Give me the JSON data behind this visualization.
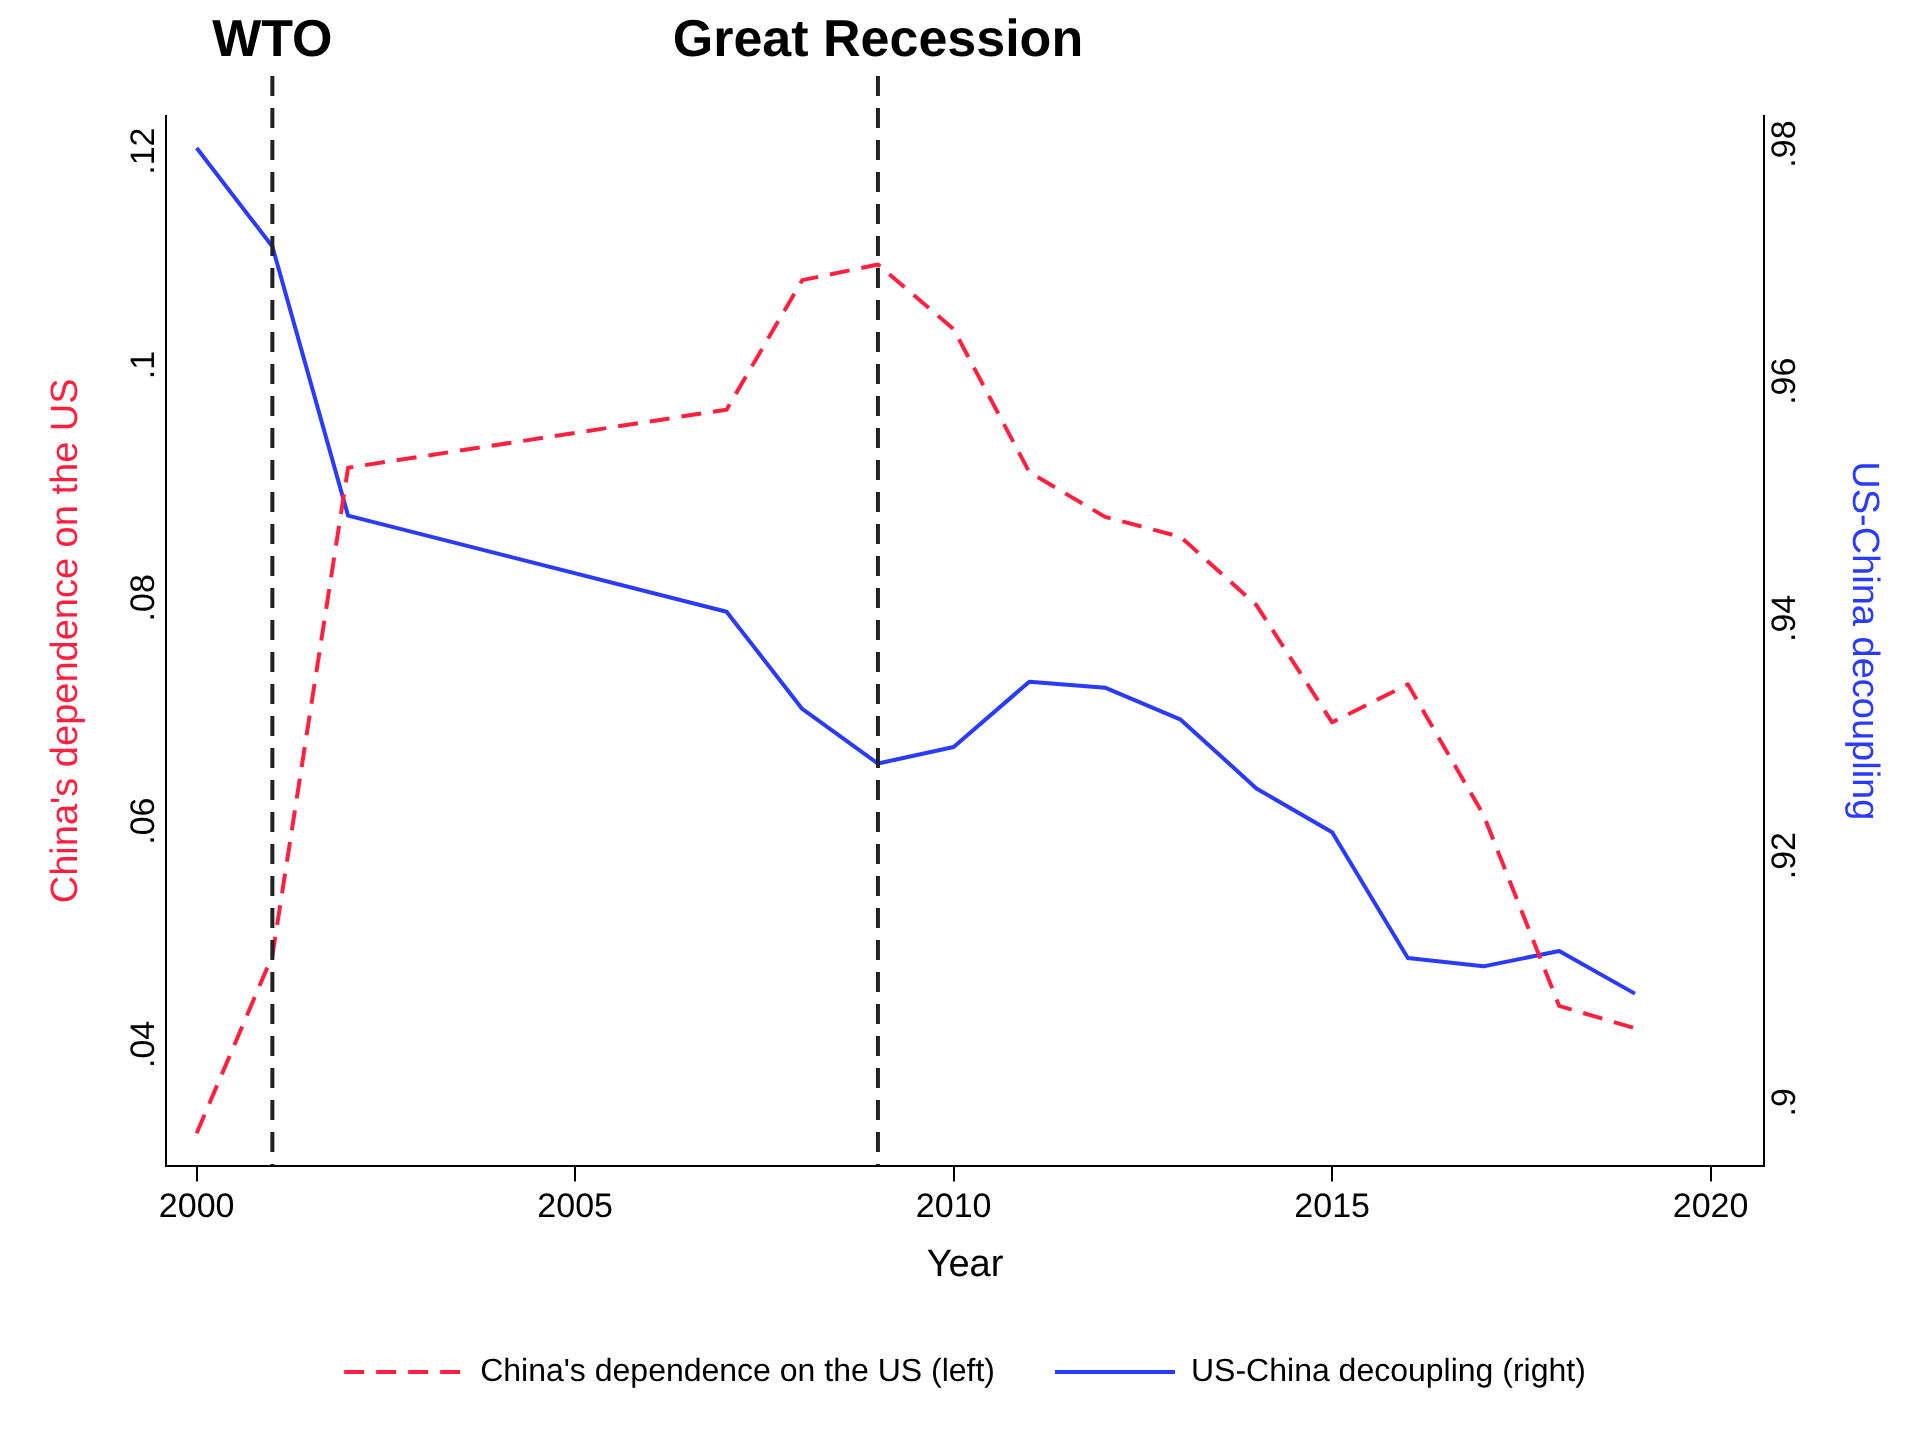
{
  "chart_data": {
    "type": "line",
    "xlabel": "Year",
    "ylabel": "China's dependence on the US",
    "y2label": "US-China decoupling",
    "x": [
      2000,
      2001,
      2002,
      2007,
      2008,
      2009,
      2010,
      2011,
      2012,
      2013,
      2014,
      2015,
      2016,
      2017,
      2018,
      2019
    ],
    "series": [
      {
        "name": "China's dependence on the US (left)",
        "color": "#ff2040",
        "line_style": "dashed",
        "values": [
          0.0319,
          0.0478,
          0.0915,
          0.0967,
          0.1083,
          0.1097,
          0.1039,
          0.0911,
          0.0871,
          0.0853,
          0.0792,
          0.0687,
          0.0721,
          0.0604,
          0.0433,
          0.0413
        ]
      },
      {
        "name": "US-China decoupling (right)",
        "color": "#2a3bff",
        "line_style": "solid",
        "axis": "y2",
        "values": [
          0.9798,
          0.9715,
          0.9488,
          0.9407,
          0.9325,
          0.9279,
          0.9293,
          0.9348,
          0.9343,
          0.9316,
          0.9258,
          0.9221,
          0.9115,
          0.9108,
          0.9121,
          0.9085
        ]
      }
    ],
    "xlim": [
      1999.6,
      2020.7
    ],
    "xticks": [
      2000,
      2005,
      2010,
      2015,
      2020
    ],
    "ylim": [
      0.029,
      0.123
    ],
    "yticks": [
      {
        "value": 0.04,
        "label": ".04"
      },
      {
        "value": 0.06,
        "label": ".06"
      },
      {
        "value": 0.08,
        "label": ".08"
      },
      {
        "value": 0.1,
        "label": ".1"
      },
      {
        "value": 0.12,
        "label": ".12"
      }
    ],
    "y2lim": [
      0.894,
      0.9825
    ],
    "y2ticks": [
      {
        "value": 0.9,
        "label": ".9"
      },
      {
        "value": 0.92,
        "label": ".92"
      },
      {
        "value": 0.94,
        "label": ".94"
      },
      {
        "value": 0.96,
        "label": ".96"
      },
      {
        "value": 0.98,
        "label": ".98"
      }
    ],
    "ref_lines": [
      {
        "axis": "x",
        "value": 2001,
        "label": "WTO",
        "color": "#222222",
        "line_style": "dashed"
      },
      {
        "axis": "x",
        "value": 2009,
        "label": "Great Recession",
        "color": "#222222",
        "line_style": "dashed"
      }
    ],
    "legend": "bottom",
    "grid": false
  }
}
